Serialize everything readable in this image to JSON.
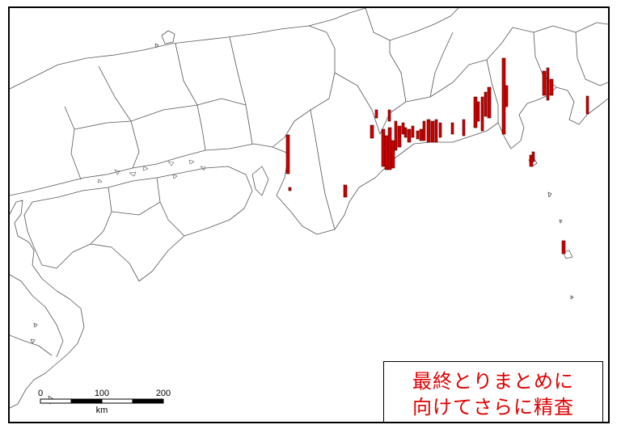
{
  "note": {
    "line1": "最終とりまとめに",
    "line2": "向けてさらに精査"
  },
  "scale_bar": {
    "ticks": [
      "0",
      "100",
      "200"
    ],
    "unit": "km"
  },
  "map_style": {
    "boundary_color": "#555555",
    "bar_color": "#cc0000",
    "bar_edge_color": "#550000"
  }
}
